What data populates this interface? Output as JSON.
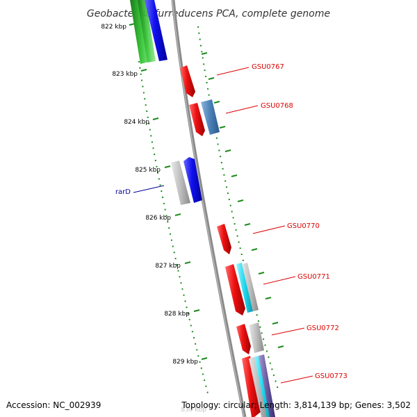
{
  "title": "Geobacter sulfurreducens PCA, complete genome",
  "accession": "Accession: NC_002939",
  "summary": "Topology: circular; Length: 3,814,139 bp; Genes: 3,502",
  "kbp_labels": [
    "822 kbp",
    "823 kbp",
    "824 kbp",
    "825 kbp",
    "826 kbp",
    "827 kbp",
    "828 kbp",
    "829 kbp",
    "830 kbp"
  ],
  "genes": [
    {
      "label": "GSU0767",
      "color": "#dd0000"
    },
    {
      "label": "GSU0768",
      "color": "#dd0000"
    },
    {
      "label": "rarD",
      "color": "#000099"
    },
    {
      "label": "GSU0770",
      "color": "#dd0000"
    },
    {
      "label": "GSU0771",
      "color": "#dd0000"
    },
    {
      "label": "GSU0772",
      "color": "#dd0000"
    },
    {
      "label": "GSU0773",
      "color": "#dd0000"
    }
  ],
  "colors": {
    "backbone": "#8a8a8a",
    "tick_green": "#1a8a1a",
    "cds_red": "#ee1111",
    "blue": "#1010ee",
    "steel_blue": "#4a80b8",
    "gray": "#b8b8b8",
    "cyan": "#1ed8ee",
    "green_feature": "#22aa22",
    "purple": "#6a5aa0"
  }
}
